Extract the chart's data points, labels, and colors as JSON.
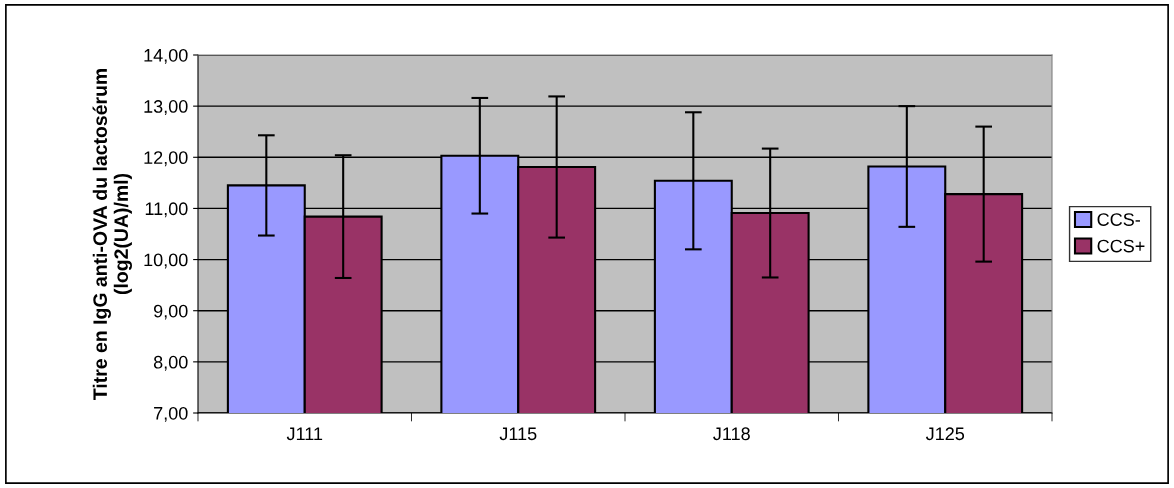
{
  "chart_data": {
    "type": "bar",
    "ylabel": "Titre en IgG anti-OVA du lactosérum\n(log2(UA)/ml)",
    "categories": [
      "J111",
      "J115",
      "J118",
      "J125"
    ],
    "series": [
      {
        "name": "CCS-",
        "color": "#9999ff",
        "values": [
          11.45,
          12.03,
          11.54,
          11.82
        ],
        "errors": [
          0.98,
          1.13,
          1.34,
          1.18
        ]
      },
      {
        "name": "CCS+",
        "color": "#993366",
        "values": [
          10.84,
          11.81,
          10.91,
          11.28
        ],
        "errors": [
          1.2,
          1.38,
          1.26,
          1.32
        ]
      }
    ],
    "ylim": [
      7,
      14
    ],
    "yticks": [
      {
        "value": 7,
        "label": "7,00"
      },
      {
        "value": 8,
        "label": "8,00"
      },
      {
        "value": 9,
        "label": "9,00"
      },
      {
        "value": 10,
        "label": "10,00"
      },
      {
        "value": 11,
        "label": "11,00"
      },
      {
        "value": 12,
        "label": "12,00"
      },
      {
        "value": 13,
        "label": "13,00"
      },
      {
        "value": 14,
        "label": "14,00"
      }
    ],
    "grid": "y",
    "legend": "right"
  }
}
